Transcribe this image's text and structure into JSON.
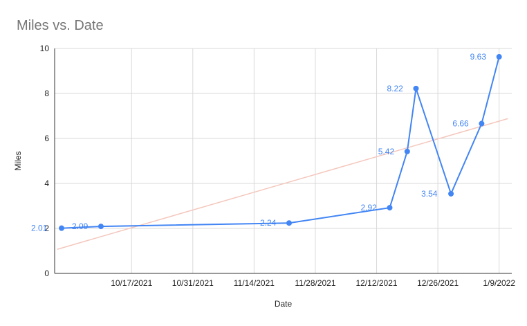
{
  "chart_data": {
    "type": "line",
    "title": "Miles vs. Date",
    "xlabel": "Date",
    "ylabel": "Miles",
    "ylim": [
      0,
      10
    ],
    "xlim": [
      "2021-10-01",
      "2022-01-10"
    ],
    "y_ticks": [
      0,
      2,
      4,
      6,
      8,
      10
    ],
    "x_ticks": [
      {
        "date": "2021-10-17",
        "label": "10/17/2021"
      },
      {
        "date": "2021-10-31",
        "label": "10/31/2021"
      },
      {
        "date": "2021-11-14",
        "label": "11/14/2021"
      },
      {
        "date": "2021-11-28",
        "label": "11/28/2021"
      },
      {
        "date": "2021-12-12",
        "label": "12/12/2021"
      },
      {
        "date": "2021-12-26",
        "label": "12/26/2021"
      },
      {
        "date": "2022-01-09",
        "label": "1/9/2022"
      }
    ],
    "grid": true,
    "legend": "none",
    "series": [
      {
        "points": [
          {
            "x": "2021-10-01",
            "y": 2.01,
            "label": "2.01"
          },
          {
            "x": "2021-10-10",
            "y": 2.09,
            "label": "2.09"
          },
          {
            "x": "2021-11-22",
            "y": 2.24,
            "label": "2.24"
          },
          {
            "x": "2021-12-15",
            "y": 2.92,
            "label": "2.92"
          },
          {
            "x": "2021-12-19",
            "y": 5.42,
            "label": "5.42"
          },
          {
            "x": "2021-12-21",
            "y": 8.22,
            "label": "8.22"
          },
          {
            "x": "2021-12-29",
            "y": 3.54,
            "label": "3.54"
          },
          {
            "x": "2022-01-05",
            "y": 6.66,
            "label": "6.66"
          },
          {
            "x": "2022-01-09",
            "y": 9.63,
            "label": "9.63"
          }
        ]
      }
    ],
    "trendline": {
      "start": {
        "x": "2021-09-30",
        "y": 1.07
      },
      "end": {
        "x": "2022-01-11",
        "y": 6.88
      }
    },
    "colors": {
      "series": "#4285f4",
      "trendline": "#f4c7bd",
      "grid": "#d9d9d9",
      "axis": "#333333"
    }
  }
}
